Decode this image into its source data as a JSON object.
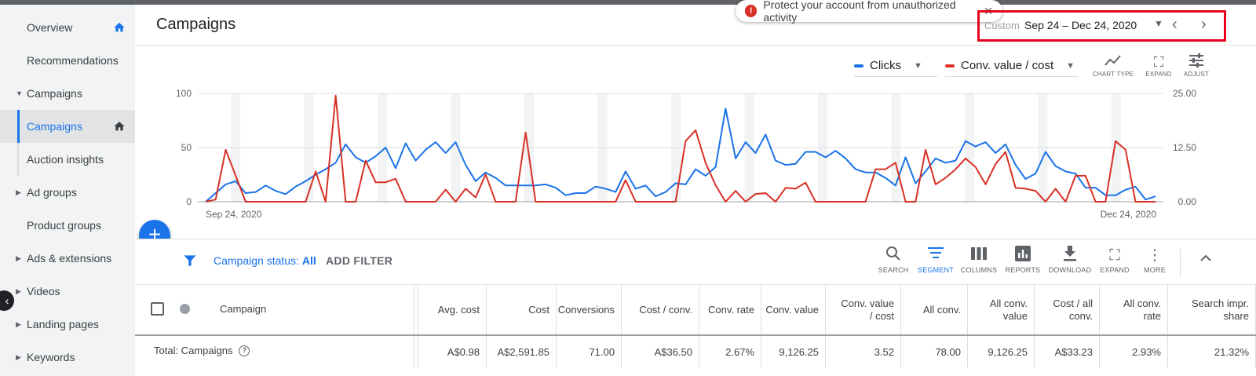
{
  "sidebar": {
    "items": [
      {
        "label": "Overview"
      },
      {
        "label": "Recommendations"
      },
      {
        "label": "Campaigns"
      },
      {
        "label": "Campaigns"
      },
      {
        "label": "Auction insights"
      },
      {
        "label": "Ad groups"
      },
      {
        "label": "Product groups"
      },
      {
        "label": "Ads & extensions"
      },
      {
        "label": "Videos"
      },
      {
        "label": "Landing pages"
      },
      {
        "label": "Keywords"
      }
    ]
  },
  "header": {
    "title": "Campaigns",
    "toast": "Protect your account from unauthorized activity",
    "date_custom": "Custom",
    "date_range": "Sep 24 – Dec 24, 2020"
  },
  "chart_controls": {
    "metric1": "Clicks",
    "metric2": "Conv. value / cost",
    "chart_type": "CHART TYPE",
    "expand": "EXPAND",
    "adjust": "ADJUST"
  },
  "chart_data": {
    "type": "line",
    "x_start_label": "Sep 24, 2020",
    "x_end_label": "Dec 24, 2020",
    "left_axis": {
      "ticks": [
        "100",
        "50",
        "0"
      ],
      "range": [
        0,
        100
      ]
    },
    "right_axis": {
      "ticks": [
        "25.00",
        "12.50",
        "0.00"
      ],
      "range": [
        0,
        25
      ]
    },
    "grid": true,
    "legend": "top-right",
    "series": [
      {
        "name": "Clicks",
        "color": "#1a73e8",
        "axis": "left",
        "values": [
          0,
          8,
          16,
          19,
          8,
          9,
          15,
          10,
          7,
          14,
          19,
          25,
          30,
          36,
          53,
          41,
          36,
          42,
          50,
          31,
          54,
          38,
          48,
          55,
          45,
          55,
          34,
          19,
          27,
          22,
          15,
          15,
          15,
          15,
          16,
          13,
          6,
          8,
          8,
          14,
          12,
          9,
          28,
          12,
          15,
          5,
          9,
          17,
          16,
          30,
          24,
          32,
          86,
          40,
          55,
          45,
          62,
          38,
          34,
          35,
          46,
          46,
          41,
          47,
          40,
          30,
          27,
          27,
          22,
          15,
          41,
          17,
          28,
          40,
          36,
          38,
          56,
          51,
          55,
          45,
          53,
          34,
          21,
          26,
          46,
          33,
          28,
          26,
          13,
          13,
          6,
          6,
          11,
          14,
          2,
          5
        ]
      },
      {
        "name": "Conv. value / cost",
        "color": "#d93025",
        "axis": "right",
        "values": [
          0,
          0.5,
          12,
          6,
          0,
          0,
          0,
          0,
          0,
          0,
          0,
          7,
          0,
          24.5,
          0,
          0,
          9.5,
          4.5,
          4.5,
          5.3,
          0,
          0,
          0,
          0,
          2.8,
          0,
          3,
          1,
          6.3,
          0,
          0,
          0,
          16,
          0,
          0,
          0,
          0,
          0,
          0,
          0,
          0,
          0,
          5,
          0,
          0,
          0,
          0,
          0,
          14,
          16.5,
          9,
          3.8,
          0,
          2.5,
          0,
          1.8,
          2,
          0,
          3.2,
          3,
          4.4,
          0,
          0,
          0,
          0,
          0,
          0,
          7.5,
          7.5,
          9,
          0,
          0,
          12,
          4,
          5.5,
          7.5,
          10,
          8,
          4,
          8.7,
          11.5,
          3.2,
          3,
          2.5,
          0,
          3,
          0,
          6,
          6,
          0,
          0,
          14,
          12,
          0,
          0,
          0
        ]
      }
    ]
  },
  "filter": {
    "status_prefix": "Campaign status:",
    "status_value": "All",
    "add_filter": "ADD FILTER"
  },
  "table_tools": [
    {
      "label": "SEARCH",
      "icon": "search-icon"
    },
    {
      "label": "SEGMENT",
      "icon": "segment-icon"
    },
    {
      "label": "COLUMNS",
      "icon": "columns-icon"
    },
    {
      "label": "REPORTS",
      "icon": "reports-icon"
    },
    {
      "label": "DOWNLOAD",
      "icon": "download-icon"
    },
    {
      "label": "EXPAND",
      "icon": "expand-icon"
    },
    {
      "label": "MORE",
      "icon": "more-icon"
    }
  ],
  "table": {
    "campaign_header": "Campaign",
    "total_label": "Total: Campaigns",
    "columns": [
      {
        "header": "Avg. cost",
        "total": "A$0.98"
      },
      {
        "header": "Cost",
        "total": "A$2,591.85"
      },
      {
        "header": "Conversions",
        "total": "71.00"
      },
      {
        "header": "Cost / conv.",
        "total": "A$36.50"
      },
      {
        "header": "Conv. rate",
        "total": "2.67%"
      },
      {
        "header": "Conv. value",
        "total": "9,126.25"
      },
      {
        "header": "Conv. value\n/ cost",
        "total": "3.52"
      },
      {
        "header": "All conv.",
        "total": "78.00"
      },
      {
        "header": "All conv.\nvalue",
        "total": "9,126.25"
      },
      {
        "header": "Cost / all\nconv.",
        "total": "A$33.23"
      },
      {
        "header": "All conv.\nrate",
        "total": "2.93%"
      },
      {
        "header": "Search impr.\nshare",
        "total": "21.32%"
      }
    ]
  }
}
